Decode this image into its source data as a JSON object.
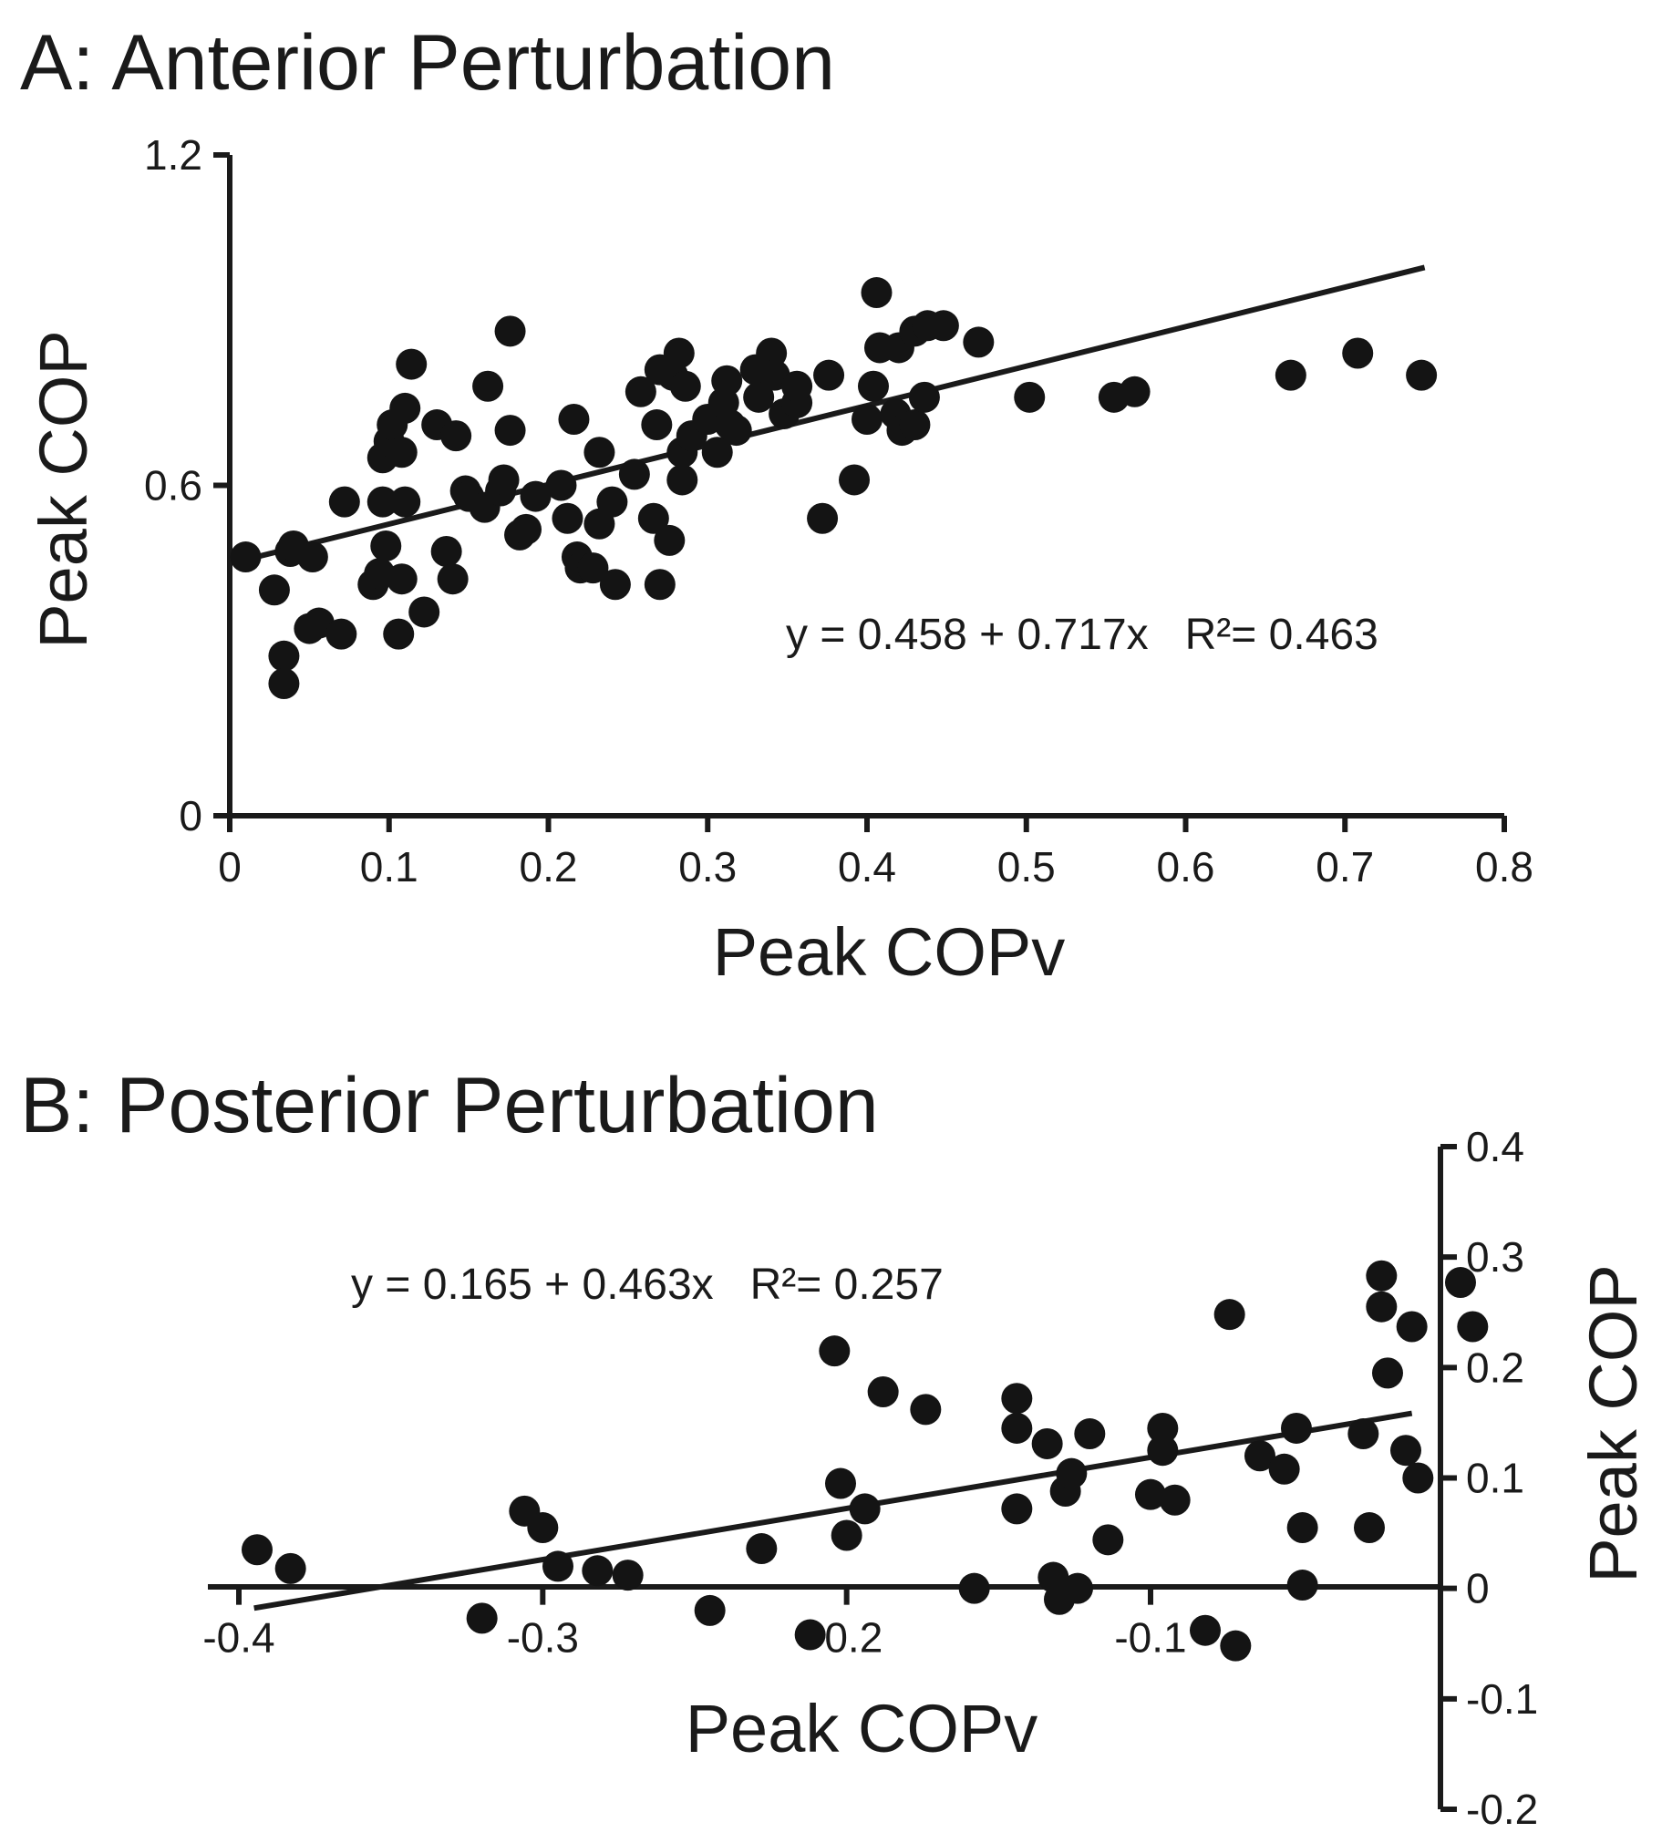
{
  "chart_data": [
    {
      "type": "scatter",
      "title": "A: Anterior Perturbation",
      "xlabel": "Peak COPv",
      "ylabel": "Peak COP",
      "xlim": [
        0,
        0.8
      ],
      "ylim": [
        0,
        1.2
      ],
      "xticks": [
        "0",
        "0.1",
        "0.2",
        "0.3",
        "0.4",
        "0.5",
        "0.6",
        "0.7",
        "0.8"
      ],
      "yticks": [
        "0",
        "0.6",
        "1.2"
      ],
      "fit": {
        "intercept": 0.458,
        "slope": 0.717,
        "x_range": [
          0.01,
          0.75
        ],
        "label": "y = 0.458 + 0.717x",
        "r2_label": "R²= 0.463"
      },
      "grid": false,
      "points": [
        [
          0.01,
          0.47
        ],
        [
          0.028,
          0.41
        ],
        [
          0.034,
          0.29
        ],
        [
          0.034,
          0.24
        ],
        [
          0.038,
          0.48
        ],
        [
          0.04,
          0.49
        ],
        [
          0.05,
          0.34
        ],
        [
          0.052,
          0.47
        ],
        [
          0.056,
          0.35
        ],
        [
          0.07,
          0.33
        ],
        [
          0.072,
          0.57
        ],
        [
          0.09,
          0.42
        ],
        [
          0.094,
          0.44
        ],
        [
          0.096,
          0.57
        ],
        [
          0.096,
          0.65
        ],
        [
          0.098,
          0.49
        ],
        [
          0.1,
          0.68
        ],
        [
          0.102,
          0.71
        ],
        [
          0.106,
          0.33
        ],
        [
          0.108,
          0.43
        ],
        [
          0.108,
          0.66
        ],
        [
          0.11,
          0.74
        ],
        [
          0.11,
          0.57
        ],
        [
          0.114,
          0.82
        ],
        [
          0.122,
          0.37
        ],
        [
          0.13,
          0.71
        ],
        [
          0.136,
          0.48
        ],
        [
          0.14,
          0.43
        ],
        [
          0.142,
          0.69
        ],
        [
          0.148,
          0.59
        ],
        [
          0.15,
          0.58
        ],
        [
          0.16,
          0.56
        ],
        [
          0.162,
          0.78
        ],
        [
          0.17,
          0.59
        ],
        [
          0.172,
          0.61
        ],
        [
          0.176,
          0.88
        ],
        [
          0.176,
          0.7
        ],
        [
          0.182,
          0.51
        ],
        [
          0.186,
          0.52
        ],
        [
          0.192,
          0.58
        ],
        [
          0.208,
          0.6
        ],
        [
          0.212,
          0.54
        ],
        [
          0.216,
          0.72
        ],
        [
          0.218,
          0.47
        ],
        [
          0.22,
          0.45
        ],
        [
          0.228,
          0.45
        ],
        [
          0.232,
          0.66
        ],
        [
          0.232,
          0.53
        ],
        [
          0.24,
          0.57
        ],
        [
          0.242,
          0.42
        ],
        [
          0.254,
          0.62
        ],
        [
          0.258,
          0.77
        ],
        [
          0.266,
          0.54
        ],
        [
          0.268,
          0.71
        ],
        [
          0.27,
          0.42
        ],
        [
          0.27,
          0.81
        ],
        [
          0.276,
          0.5
        ],
        [
          0.278,
          0.8
        ],
        [
          0.282,
          0.84
        ],
        [
          0.284,
          0.61
        ],
        [
          0.284,
          0.66
        ],
        [
          0.286,
          0.78
        ],
        [
          0.29,
          0.69
        ],
        [
          0.3,
          0.72
        ],
        [
          0.306,
          0.66
        ],
        [
          0.31,
          0.75
        ],
        [
          0.312,
          0.79
        ],
        [
          0.314,
          0.71
        ],
        [
          0.318,
          0.7
        ],
        [
          0.33,
          0.81
        ],
        [
          0.332,
          0.76
        ],
        [
          0.34,
          0.84
        ],
        [
          0.342,
          0.8
        ],
        [
          0.348,
          0.73
        ],
        [
          0.356,
          0.75
        ],
        [
          0.356,
          0.78
        ],
        [
          0.372,
          0.54
        ],
        [
          0.376,
          0.8
        ],
        [
          0.392,
          0.61
        ],
        [
          0.4,
          0.72
        ],
        [
          0.404,
          0.78
        ],
        [
          0.406,
          0.95
        ],
        [
          0.408,
          0.85
        ],
        [
          0.418,
          0.73
        ],
        [
          0.42,
          0.85
        ],
        [
          0.422,
          0.7
        ],
        [
          0.43,
          0.71
        ],
        [
          0.43,
          0.88
        ],
        [
          0.436,
          0.76
        ],
        [
          0.438,
          0.89
        ],
        [
          0.448,
          0.89
        ],
        [
          0.47,
          0.86
        ],
        [
          0.502,
          0.76
        ],
        [
          0.555,
          0.76
        ],
        [
          0.568,
          0.77
        ],
        [
          0.666,
          0.8
        ],
        [
          0.708,
          0.84
        ],
        [
          0.748,
          0.8
        ]
      ]
    },
    {
      "type": "scatter",
      "title": "B: Posterior Perturbation",
      "xlabel": "Peak COPv",
      "ylabel": "Peak COP",
      "xlim": [
        -0.4,
        -0.0
      ],
      "ylim": [
        -0.2,
        0.4
      ],
      "xticks": [
        "-0.4",
        "-0.3",
        "-0.2",
        "-0.1"
      ],
      "yticks": [
        "-0.2",
        "-0.1",
        "0",
        "0.1",
        "0.2",
        "0.3",
        "0.4"
      ],
      "fit": {
        "intercept": 0.165,
        "slope": 0.463,
        "x_range": [
          -0.395,
          -0.014
        ],
        "label": "y = 0.165 + 0.463x",
        "r2_label": "R²= 0.257"
      },
      "grid": false,
      "points": [
        [
          -0.394,
          0.035
        ],
        [
          -0.383,
          0.018
        ],
        [
          -0.32,
          -0.027
        ],
        [
          -0.306,
          0.07
        ],
        [
          -0.3,
          0.055
        ],
        [
          -0.295,
          0.02
        ],
        [
          -0.282,
          0.016
        ],
        [
          -0.272,
          0.012
        ],
        [
          -0.245,
          -0.02
        ],
        [
          -0.228,
          0.036
        ],
        [
          -0.212,
          -0.042
        ],
        [
          -0.204,
          0.215
        ],
        [
          -0.202,
          0.095
        ],
        [
          -0.2,
          0.048
        ],
        [
          -0.194,
          0.072
        ],
        [
          -0.188,
          0.178
        ],
        [
          -0.174,
          0.162
        ],
        [
          -0.158,
          0.0
        ],
        [
          -0.144,
          0.072
        ],
        [
          -0.144,
          0.172
        ],
        [
          -0.144,
          0.145
        ],
        [
          -0.134,
          0.131
        ],
        [
          -0.132,
          0.01
        ],
        [
          -0.13,
          -0.01
        ],
        [
          -0.128,
          0.088
        ],
        [
          -0.126,
          0.104
        ],
        [
          -0.124,
          0.0
        ],
        [
          -0.12,
          0.14
        ],
        [
          -0.114,
          0.044
        ],
        [
          -0.1,
          0.085
        ],
        [
          -0.096,
          0.145
        ],
        [
          -0.096,
          0.125
        ],
        [
          -0.092,
          0.08
        ],
        [
          -0.082,
          -0.038
        ],
        [
          -0.072,
          -0.052
        ],
        [
          -0.074,
          0.248
        ],
        [
          -0.064,
          0.12
        ],
        [
          -0.056,
          0.108
        ],
        [
          -0.052,
          0.145
        ],
        [
          -0.05,
          0.055
        ],
        [
          -0.05,
          0.003
        ],
        [
          -0.03,
          0.14
        ],
        [
          -0.028,
          0.055
        ],
        [
          -0.024,
          0.283
        ],
        [
          -0.024,
          0.255
        ],
        [
          -0.022,
          0.195
        ],
        [
          -0.014,
          0.237
        ],
        [
          -0.016,
          0.125
        ],
        [
          -0.012,
          0.1
        ],
        [
          0.002,
          0.277
        ],
        [
          0.006,
          0.237
        ]
      ]
    }
  ]
}
